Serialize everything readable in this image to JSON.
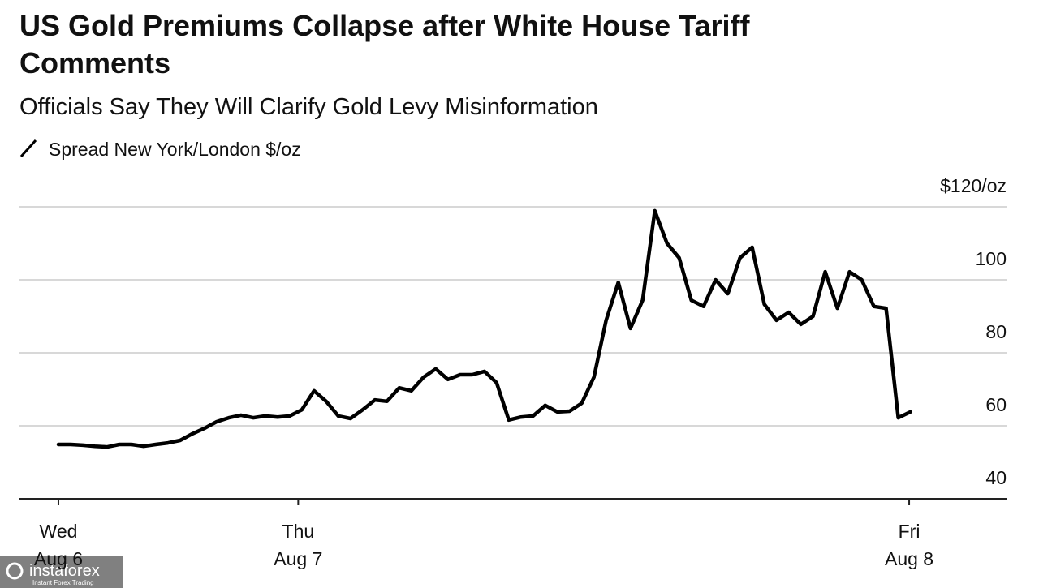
{
  "chart_data": {
    "type": "line",
    "title": "US Gold Premiums Collapse after White House Tariff Comments",
    "subtitle": "Officials Say They Will Clarify Gold Levy Misinformation",
    "series": [
      {
        "name": "Spread New York/London $/oz",
        "color": "#000000",
        "values": [
          54.9,
          54.9,
          54.7,
          54.4,
          54.2,
          54.9,
          54.9,
          54.4,
          54.9,
          55.3,
          56,
          57.8,
          59.3,
          61.1,
          62.2,
          62.9,
          62.2,
          62.7,
          62.4,
          62.7,
          64.4,
          69.6,
          66.7,
          62.7,
          62,
          64.4,
          67.1,
          66.7,
          70.4,
          69.6,
          73.3,
          75.6,
          72.7,
          74,
          74,
          74.9,
          71.8,
          61.6,
          62.4,
          62.7,
          65.6,
          63.8,
          64,
          66.2,
          73.3,
          88.9,
          99.3,
          86.7,
          94.4,
          118.9,
          110,
          106,
          94.4,
          92.7,
          100,
          96.2,
          106,
          108.9,
          93.3,
          88.9,
          91.1,
          87.8,
          90,
          102.2,
          92.2,
          102.2,
          100,
          92.7,
          92.2,
          62.2,
          63.8
        ]
      }
    ],
    "xlim": [
      -3.2,
      77.9
    ],
    "xticks": [
      {
        "value": 0,
        "label": [
          "Wed",
          "Aug 6"
        ]
      },
      {
        "value": 19.7,
        "label": [
          "Thu",
          "Aug 7"
        ]
      },
      {
        "value": 69.9,
        "label": [
          "Fri",
          "Aug 8"
        ]
      }
    ],
    "ylim": [
      40,
      120
    ],
    "yticks": [
      40,
      60,
      80,
      100,
      {
        "value": 120,
        "label": "$120/oz"
      }
    ],
    "grid": true
  },
  "watermark": {
    "name": "instaforex",
    "tagline": "Instant Forex Trading"
  }
}
